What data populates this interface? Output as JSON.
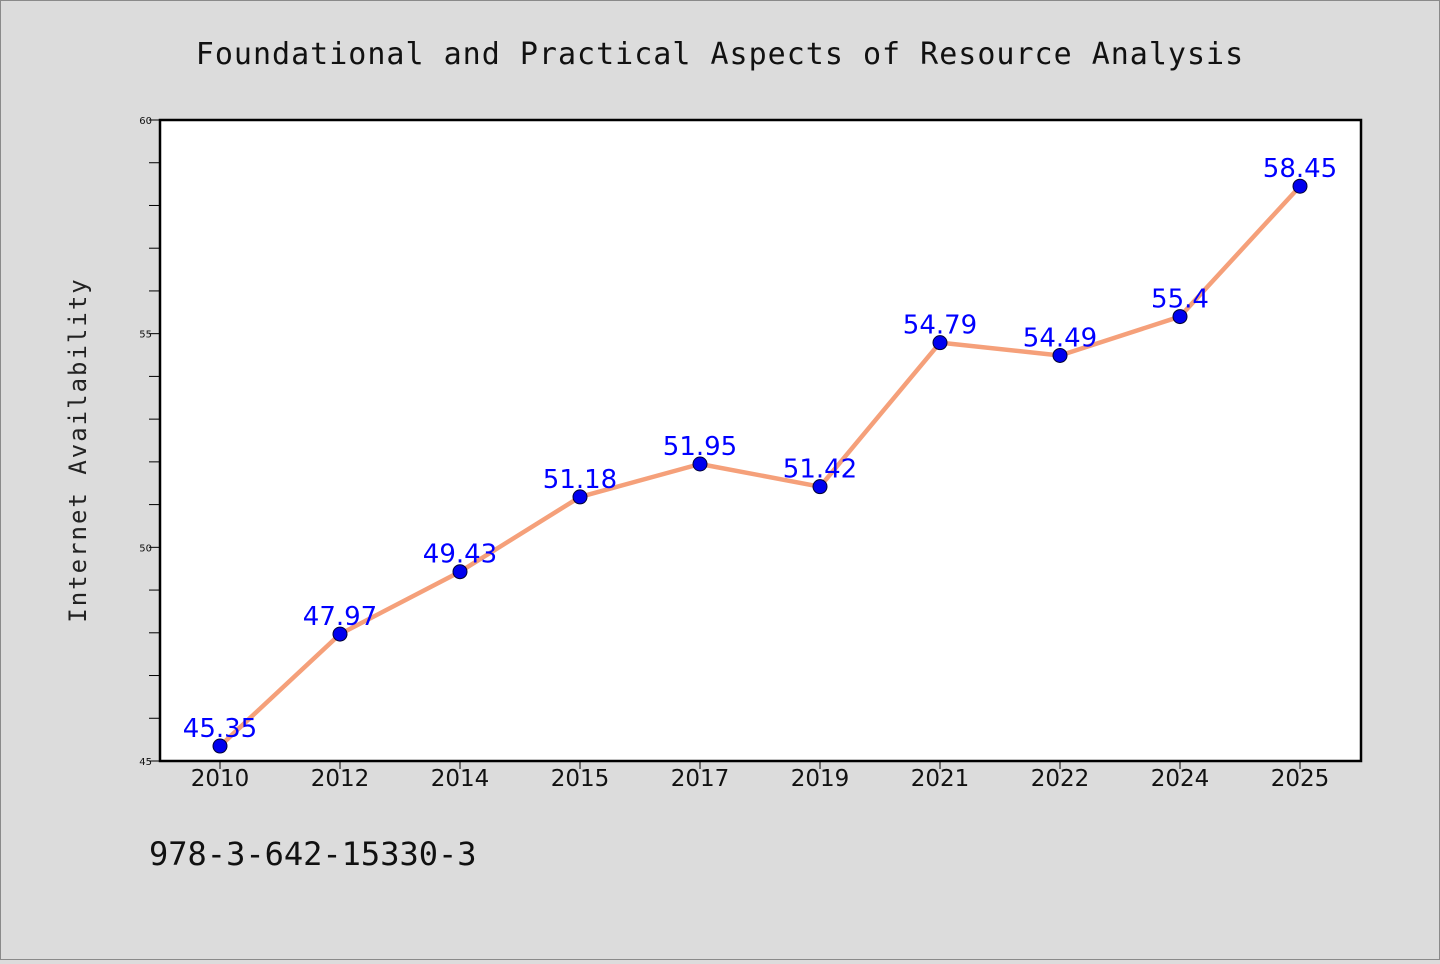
{
  "chart_data": {
    "type": "line",
    "title": "Foundational and Practical Aspects of Resource Analysis",
    "xlabel": "",
    "ylabel": "Internet Availability",
    "categories": [
      "2010",
      "2012",
      "2014",
      "2015",
      "2017",
      "2019",
      "2021",
      "2022",
      "2024",
      "2025"
    ],
    "series": [
      {
        "values": [
          45.35,
          47.97,
          49.43,
          51.18,
          51.95,
          51.42,
          54.79,
          54.49,
          55.4,
          58.45
        ],
        "labels": [
          "45.35",
          "47.97",
          "49.43",
          "51.18",
          "51.95",
          "51.42",
          "54.79",
          "54.49",
          "55.4",
          "58.45"
        ]
      }
    ],
    "ylim": [
      45,
      60
    ],
    "yticks": [
      45,
      50,
      55,
      60
    ],
    "grid": false,
    "line_color": "#f5a07a",
    "marker_color": "#0000ee",
    "label_color": "#0000ff"
  },
  "footer": {
    "isbn": "978-3-642-15330-3"
  }
}
